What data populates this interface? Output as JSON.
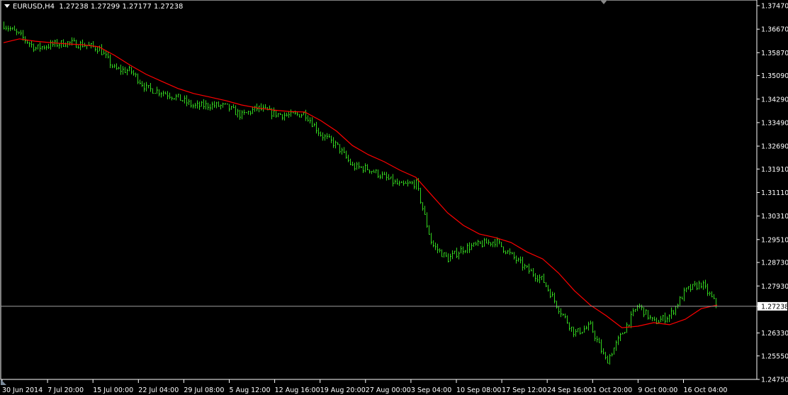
{
  "header": {
    "symbol": "EURUSD,H4",
    "open": "1.27238",
    "high": "1.27299",
    "low": "1.27177",
    "close": "1.27238"
  },
  "colors": {
    "background": "#000000",
    "bars": "#32d21e",
    "moving_average": "#ff0000",
    "axis": "#ffffff",
    "price_line": "#a0a0a0"
  },
  "chart_data": {
    "type": "bar",
    "title": "EURUSD,H4",
    "ylim": [
      1.2475,
      1.3747
    ],
    "y_ticks": [
      "1.37470",
      "1.36670",
      "1.35870",
      "1.35090",
      "1.34290",
      "1.33490",
      "1.32690",
      "1.31910",
      "1.31110",
      "1.30310",
      "1.29510",
      "1.28730",
      "1.27930",
      "1.27238",
      "1.26330",
      "1.25550",
      "1.24750"
    ],
    "x_ticks": [
      "30 Jun 2014",
      "7 Jul 20:00",
      "15 Jul 00:00",
      "22 Jul 04:00",
      "29 Jul 08:00",
      "5 Aug 12:00",
      "12 Aug 16:00",
      "19 Aug 20:00",
      "27 Aug 00:00",
      "3 Sep 04:00",
      "10 Sep 08:00",
      "17 Sep 12:00",
      "24 Sep 16:00",
      "1 Oct 20:00",
      "9 Oct 00:00",
      "16 Oct 04:00"
    ],
    "current_price": 1.27238,
    "grid": false,
    "series": [
      {
        "values": [
          1.3682,
          1.3646,
          1.3602,
          1.3614,
          1.3621,
          1.3614,
          1.3602,
          1.353,
          1.3525,
          1.3465,
          1.3453,
          1.3433,
          1.3404,
          1.3409,
          1.3404,
          1.3373,
          1.3399,
          1.338,
          1.3373,
          1.338,
          1.3308,
          1.3271,
          1.3199,
          1.3192,
          1.3163,
          1.3134,
          1.3143,
          1.2934,
          1.2885,
          1.2921,
          1.2934,
          1.2946,
          1.2897,
          1.2849,
          1.2813,
          1.2716,
          1.2632,
          1.2656,
          1.2535,
          1.2632,
          1.2728,
          1.2668,
          1.2692,
          1.2777,
          1.2801,
          1.27238
        ]
      },
      {
        "values": [
          1.3621,
          1.3634,
          1.3626,
          1.3621,
          1.3617,
          1.3614,
          1.3607,
          1.3578,
          1.3544,
          1.3513,
          1.3489,
          1.3465,
          1.3448,
          1.3436,
          1.3424,
          1.3409,
          1.3399,
          1.3392,
          1.3387,
          1.3385,
          1.3356,
          1.332,
          1.3271,
          1.324,
          1.3216,
          1.3187,
          1.3163,
          1.3102,
          1.3042,
          1.2999,
          1.297,
          1.2958,
          1.2941,
          1.2909,
          1.2885,
          1.2837,
          1.2777,
          1.2728,
          1.2692,
          1.2651,
          1.2656,
          1.2668,
          1.2661,
          1.268,
          1.2716,
          1.2728
        ]
      }
    ]
  }
}
